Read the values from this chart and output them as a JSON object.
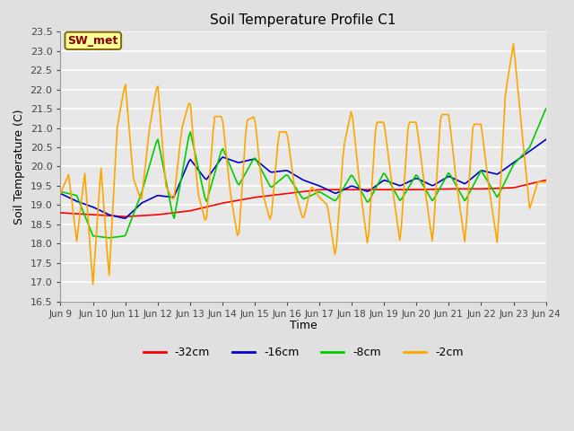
{
  "title": "Soil Temperature Profile C1",
  "xlabel": "Time",
  "ylabel": "Soil Temperature (C)",
  "ylim": [
    16.5,
    23.5
  ],
  "annotation_text": "SW_met",
  "annotation_bg": "#FFFF99",
  "annotation_border": "#8B6914",
  "annotation_text_color": "#8B0000",
  "bg_color": "#E0E0E0",
  "plot_bg_color": "#E8E8E8",
  "grid_color": "#FFFFFF",
  "line_color_32": "#FF0000",
  "line_color_16": "#0000CC",
  "line_color_8": "#00CC00",
  "line_color_2": "#FFA500",
  "x_tick_labels": [
    "Jun 9",
    "Jun 10",
    "Jun 11",
    "Jun 12",
    "Jun 13",
    "Jun 14",
    "Jun 15",
    "Jun 16",
    "Jun 17",
    "Jun 18",
    "Jun 19",
    "Jun 20",
    "Jun 21",
    "Jun 22",
    "Jun 23",
    "Jun 24"
  ],
  "legend_labels": [
    "-32cm",
    "-16cm",
    "-8cm",
    "-2cm"
  ],
  "legend_colors": [
    "#FF0000",
    "#0000CC",
    "#00CC00",
    "#FFA500"
  ],
  "yticks": [
    16.5,
    17.0,
    17.5,
    18.0,
    18.5,
    19.0,
    19.5,
    20.0,
    20.5,
    21.0,
    21.5,
    22.0,
    22.5,
    23.0,
    23.5
  ],
  "key_t_2": [
    0,
    0.25,
    0.5,
    0.75,
    1.0,
    1.25,
    1.5,
    1.75,
    2.0,
    2.25,
    2.5,
    2.75,
    3.0,
    3.25,
    3.5,
    3.75,
    4.0,
    4.25,
    4.5,
    4.75,
    5.0,
    5.25,
    5.5,
    5.75,
    6.0,
    6.25,
    6.5,
    6.75,
    7.0,
    7.25,
    7.5,
    7.75,
    8.0,
    8.25,
    8.5,
    8.75,
    9.0,
    9.25,
    9.5,
    9.75,
    10.0,
    10.25,
    10.5,
    10.75,
    11.0,
    11.25,
    11.5,
    11.75,
    12.0,
    12.25,
    12.5,
    12.75,
    13.0,
    13.25,
    13.5,
    13.75,
    14.0,
    14.25,
    14.5,
    14.75,
    15.0
  ],
  "key_v_2": [
    19.3,
    19.8,
    18.05,
    19.85,
    16.9,
    20.0,
    17.1,
    21.0,
    22.2,
    19.7,
    19.1,
    21.0,
    22.2,
    19.5,
    19.1,
    21.0,
    21.75,
    19.3,
    18.5,
    21.3,
    21.3,
    19.3,
    18.05,
    21.2,
    21.3,
    19.3,
    18.55,
    20.9,
    20.9,
    19.35,
    18.6,
    19.5,
    19.2,
    19.0,
    17.6,
    20.5,
    21.5,
    19.5,
    17.9,
    21.15,
    21.15,
    19.5,
    18.0,
    21.15,
    21.15,
    19.5,
    18.0,
    21.35,
    21.35,
    19.5,
    18.0,
    21.1,
    21.1,
    19.4,
    18.0,
    21.9,
    23.2,
    21.0,
    18.9,
    19.6,
    19.6
  ],
  "key_t_8": [
    0,
    0.5,
    1.0,
    1.5,
    2.0,
    2.5,
    3.0,
    3.5,
    4.0,
    4.5,
    5.0,
    5.5,
    6.0,
    6.5,
    7.0,
    7.5,
    8.0,
    8.5,
    9.0,
    9.5,
    10.0,
    10.5,
    11.0,
    11.5,
    12.0,
    12.5,
    13.0,
    13.5,
    14.0,
    14.5,
    15.0
  ],
  "key_v_8": [
    19.35,
    19.25,
    18.2,
    18.15,
    18.2,
    19.3,
    20.75,
    18.6,
    20.95,
    19.05,
    20.5,
    19.5,
    20.25,
    19.45,
    19.8,
    19.15,
    19.35,
    19.1,
    19.8,
    19.05,
    19.85,
    19.1,
    19.8,
    19.1,
    19.85,
    19.1,
    19.9,
    19.2,
    20.05,
    20.5,
    21.5
  ],
  "key_t_16": [
    0,
    0.5,
    1.0,
    1.5,
    2.0,
    2.5,
    3.0,
    3.5,
    4.0,
    4.5,
    5.0,
    5.5,
    6.0,
    6.5,
    7.0,
    7.5,
    8.0,
    8.5,
    9.0,
    9.5,
    10.0,
    10.5,
    11.0,
    11.5,
    12.0,
    12.5,
    13.0,
    13.5,
    14.0,
    14.5,
    15.0
  ],
  "key_v_16": [
    19.3,
    19.1,
    18.95,
    18.75,
    18.65,
    19.05,
    19.25,
    19.2,
    20.2,
    19.65,
    20.25,
    20.1,
    20.2,
    19.85,
    19.9,
    19.65,
    19.5,
    19.3,
    19.5,
    19.35,
    19.65,
    19.5,
    19.7,
    19.5,
    19.75,
    19.55,
    19.9,
    19.8,
    20.1,
    20.4,
    20.7
  ],
  "key_t_32": [
    0,
    1,
    2,
    3,
    4,
    5,
    6,
    7,
    8,
    9,
    10,
    11,
    12,
    13,
    14,
    15
  ],
  "key_v_32": [
    18.8,
    18.75,
    18.7,
    18.75,
    18.85,
    19.05,
    19.2,
    19.3,
    19.4,
    19.4,
    19.4,
    19.4,
    19.42,
    19.42,
    19.45,
    19.65
  ]
}
